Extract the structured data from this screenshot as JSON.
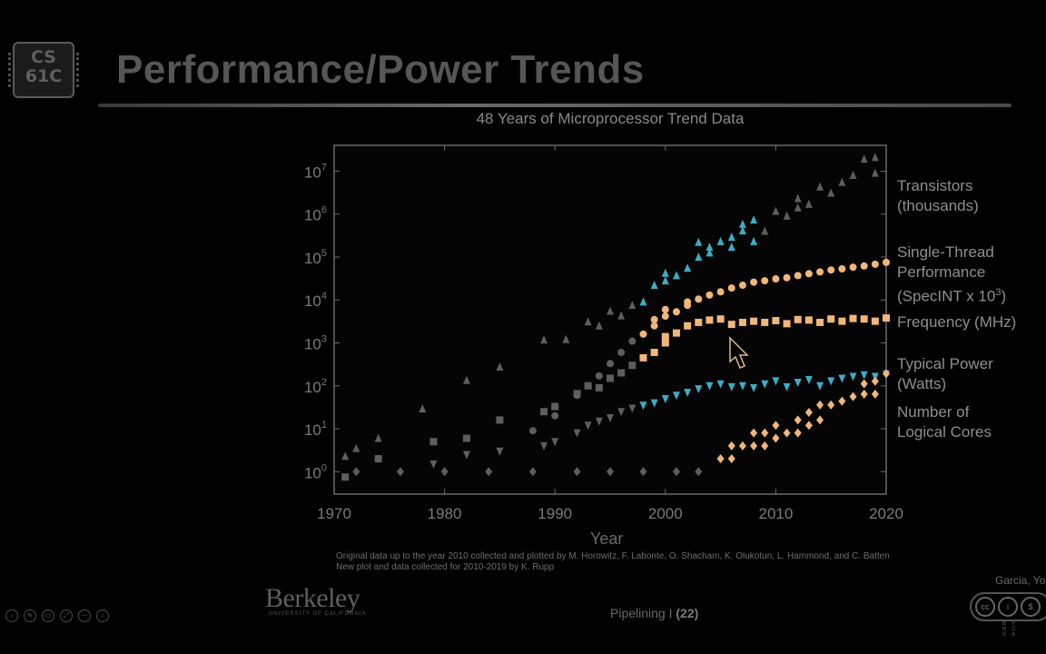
{
  "logo": {
    "text": "CS\n61C"
  },
  "slide": {
    "title": "Performance/Power Trends"
  },
  "footer": {
    "institution": "Berkeley",
    "institution_sub": "UNIVERSITY OF CALIFORNIA",
    "topic": "Pipelining I",
    "page": "(22)",
    "author": "Garcia, Yo",
    "license_tags": "BY NC SA"
  },
  "controls": [
    "prev-icon",
    "pen-icon",
    "subtitle-icon",
    "fullscreen-icon",
    "more-icon",
    "next-icon"
  ],
  "chart_data": {
    "type": "scatter",
    "title": "48 Years of Microprocessor Trend Data",
    "xlabel": "Year",
    "x_ticks": [
      1970,
      1980,
      1990,
      2000,
      2010,
      2020
    ],
    "xlim": [
      1970,
      2020
    ],
    "y_scale": "log",
    "ylim": [
      0.3,
      40000000
    ],
    "y_ticks": [
      {
        "exp": "0",
        "value": 1
      },
      {
        "exp": "1",
        "value": 10
      },
      {
        "exp": "2",
        "value": 100
      },
      {
        "exp": "3",
        "value": 1000
      },
      {
        "exp": "4",
        "value": 10000
      },
      {
        "exp": "5",
        "value": 100000
      },
      {
        "exp": "6",
        "value": 1000000
      },
      {
        "exp": "7",
        "value": 10000000
      }
    ],
    "series": [
      {
        "label": "Transistors\n(thousands)",
        "marker": "triangle-up",
        "color": "#3aaec6",
        "highlight_range": [
          1998,
          2008
        ],
        "points": [
          [
            1971,
            2.3
          ],
          [
            1972,
            3.5
          ],
          [
            1974,
            6
          ],
          [
            1978,
            29
          ],
          [
            1982,
            134
          ],
          [
            1985,
            275
          ],
          [
            1989,
            1180
          ],
          [
            1991,
            1200
          ],
          [
            1993,
            3100
          ],
          [
            1994,
            2500
          ],
          [
            1995,
            5500
          ],
          [
            1996,
            4300
          ],
          [
            1997,
            7500
          ],
          [
            1998,
            9000
          ],
          [
            1999,
            22000
          ],
          [
            2000,
            28000
          ],
          [
            2000,
            42000
          ],
          [
            2001,
            37000
          ],
          [
            2002,
            55000
          ],
          [
            2003,
            100000
          ],
          [
            2003,
            220000
          ],
          [
            2004,
            125000
          ],
          [
            2004,
            170000
          ],
          [
            2005,
            230000
          ],
          [
            2006,
            290000
          ],
          [
            2006,
            170000
          ],
          [
            2007,
            410000
          ],
          [
            2007,
            580000
          ],
          [
            2008,
            230000
          ],
          [
            2008,
            730000
          ],
          [
            2009,
            400000
          ],
          [
            2010,
            1170000
          ],
          [
            2011,
            900000
          ],
          [
            2012,
            1400000
          ],
          [
            2012,
            2300000
          ],
          [
            2013,
            1700000
          ],
          [
            2014,
            4300000
          ],
          [
            2015,
            3100000
          ],
          [
            2016,
            5500000
          ],
          [
            2017,
            8000000
          ],
          [
            2018,
            19200000
          ],
          [
            2019,
            9000000
          ],
          [
            2019,
            21000000
          ]
        ]
      },
      {
        "label": "Single-Thread\nPerformance\n(SpecINT x 10^3)",
        "marker": "circle",
        "color": "#f2b57a",
        "highlight_range": [
          1998,
          2020
        ],
        "points": [
          [
            1988,
            9
          ],
          [
            1990,
            20
          ],
          [
            1992,
            60
          ],
          [
            1993,
            100
          ],
          [
            1994,
            170
          ],
          [
            1995,
            330
          ],
          [
            1996,
            600
          ],
          [
            1997,
            1100
          ],
          [
            1998,
            1600
          ],
          [
            1999,
            2500
          ],
          [
            1999,
            3500
          ],
          [
            2000,
            4200
          ],
          [
            2000,
            6000
          ],
          [
            2001,
            5300
          ],
          [
            2002,
            7500
          ],
          [
            2002,
            9000
          ],
          [
            2003,
            10500
          ],
          [
            2004,
            13000
          ],
          [
            2005,
            15500
          ],
          [
            2006,
            19000
          ],
          [
            2007,
            22000
          ],
          [
            2008,
            26000
          ],
          [
            2009,
            28000
          ],
          [
            2010,
            31000
          ],
          [
            2011,
            33000
          ],
          [
            2012,
            37000
          ],
          [
            2013,
            41000
          ],
          [
            2014,
            45000
          ],
          [
            2015,
            50000
          ],
          [
            2016,
            53000
          ],
          [
            2017,
            58000
          ],
          [
            2018,
            62000
          ],
          [
            2019,
            68000
          ],
          [
            2020,
            75000
          ]
        ]
      },
      {
        "label": "Frequency (MHz)",
        "marker": "square",
        "color": "#f2b57a",
        "highlight_range": [
          1998,
          2020
        ],
        "points": [
          [
            1971,
            0.75
          ],
          [
            1974,
            2
          ],
          [
            1979,
            5
          ],
          [
            1982,
            6
          ],
          [
            1985,
            16
          ],
          [
            1989,
            25
          ],
          [
            1990,
            33
          ],
          [
            1992,
            66
          ],
          [
            1993,
            100
          ],
          [
            1994,
            90
          ],
          [
            1995,
            150
          ],
          [
            1996,
            200
          ],
          [
            1997,
            300
          ],
          [
            1998,
            450
          ],
          [
            1999,
            600
          ],
          [
            2000,
            1000
          ],
          [
            2000,
            1400
          ],
          [
            2001,
            1700
          ],
          [
            2002,
            2500
          ],
          [
            2003,
            3000
          ],
          [
            2004,
            3400
          ],
          [
            2005,
            3600
          ],
          [
            2006,
            2700
          ],
          [
            2007,
            3000
          ],
          [
            2008,
            3200
          ],
          [
            2009,
            3000
          ],
          [
            2010,
            3300
          ],
          [
            2011,
            2800
          ],
          [
            2012,
            3500
          ],
          [
            2013,
            3400
          ],
          [
            2014,
            3000
          ],
          [
            2015,
            3600
          ],
          [
            2016,
            3200
          ],
          [
            2017,
            3700
          ],
          [
            2018,
            3600
          ],
          [
            2019,
            3200
          ],
          [
            2020,
            3800
          ]
        ]
      },
      {
        "label": "Typical Power\n(Watts)",
        "marker": "triangle-down",
        "color": "#3aaec6",
        "highlight_range": [
          1998,
          2020
        ],
        "points": [
          [
            1979,
            1.5
          ],
          [
            1982,
            2.5
          ],
          [
            1985,
            3
          ],
          [
            1989,
            4
          ],
          [
            1990,
            5
          ],
          [
            1992,
            8
          ],
          [
            1993,
            12
          ],
          [
            1994,
            15
          ],
          [
            1995,
            18
          ],
          [
            1996,
            25
          ],
          [
            1997,
            30
          ],
          [
            1998,
            35
          ],
          [
            1999,
            40
          ],
          [
            2000,
            50
          ],
          [
            2001,
            60
          ],
          [
            2002,
            70
          ],
          [
            2003,
            85
          ],
          [
            2004,
            100
          ],
          [
            2005,
            110
          ],
          [
            2006,
            95
          ],
          [
            2007,
            100
          ],
          [
            2008,
            90
          ],
          [
            2009,
            110
          ],
          [
            2010,
            130
          ],
          [
            2011,
            95
          ],
          [
            2012,
            120
          ],
          [
            2013,
            140
          ],
          [
            2014,
            100
          ],
          [
            2015,
            130
          ],
          [
            2016,
            150
          ],
          [
            2017,
            165
          ],
          [
            2018,
            180
          ],
          [
            2019,
            165
          ],
          [
            2020,
            190
          ]
        ]
      },
      {
        "label": "Number of\nLogical Cores",
        "marker": "diamond",
        "color": "#f2b57a",
        "highlight_range": [
          2005,
          2020
        ],
        "points": [
          [
            1972,
            1
          ],
          [
            1976,
            1
          ],
          [
            1980,
            1
          ],
          [
            1984,
            1
          ],
          [
            1988,
            1
          ],
          [
            1992,
            1
          ],
          [
            1995,
            1
          ],
          [
            1998,
            1
          ],
          [
            2001,
            1
          ],
          [
            2003,
            1
          ],
          [
            2005,
            2
          ],
          [
            2006,
            2
          ],
          [
            2006,
            4
          ],
          [
            2007,
            4
          ],
          [
            2008,
            4
          ],
          [
            2008,
            8
          ],
          [
            2009,
            4
          ],
          [
            2009,
            8
          ],
          [
            2010,
            6
          ],
          [
            2010,
            12
          ],
          [
            2011,
            8
          ],
          [
            2012,
            16
          ],
          [
            2012,
            8
          ],
          [
            2013,
            24
          ],
          [
            2013,
            12
          ],
          [
            2014,
            16
          ],
          [
            2014,
            36
          ],
          [
            2015,
            36
          ],
          [
            2016,
            44
          ],
          [
            2017,
            56
          ],
          [
            2018,
            64
          ],
          [
            2018,
            112
          ],
          [
            2019,
            64
          ],
          [
            2019,
            128
          ],
          [
            2020,
            192
          ]
        ]
      }
    ],
    "credits": [
      "Original data up to the year 2010 collected and plotted by M. Horowitz, F. Labonte, O. Shacham, K. Olukotun, L. Hammond, and C. Batten",
      "New plot and data collected for 2010-2019 by K. Rupp"
    ]
  }
}
